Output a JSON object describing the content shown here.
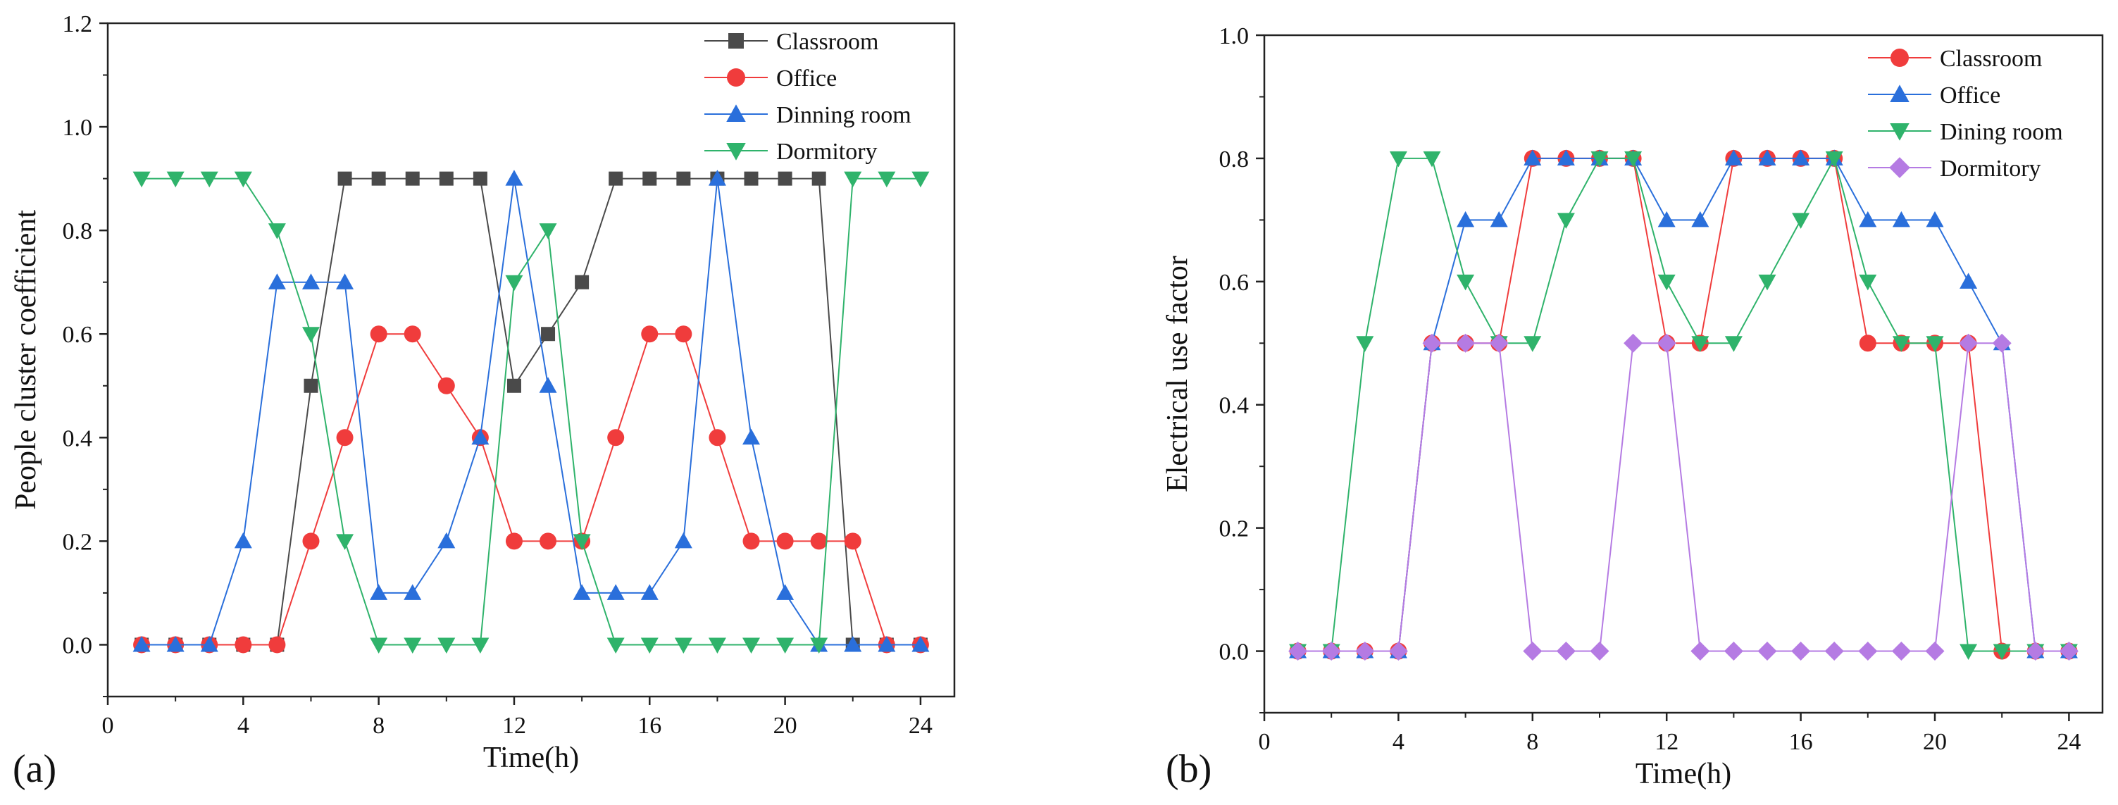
{
  "chart_data": [
    {
      "type": "line",
      "panel_label": "(a)",
      "title": "",
      "xlabel": "Time(h)",
      "ylabel": "People cluster coefficient",
      "xlim": [
        0,
        25
      ],
      "ylim": [
        -0.1,
        1.2
      ],
      "xticks": [
        0,
        4,
        8,
        12,
        16,
        20,
        24
      ],
      "xtick_labels": [
        "0",
        "4",
        "8",
        "12",
        "16",
        "20",
        "24"
      ],
      "yticks": [
        0.0,
        0.2,
        0.4,
        0.6,
        0.8,
        1.0,
        1.2
      ],
      "ytick_labels": [
        "0.0",
        "0.2",
        "0.4",
        "0.6",
        "0.8",
        "1.0",
        "1.2"
      ],
      "grid": false,
      "legend_position": "top-right",
      "x": [
        1,
        2,
        3,
        4,
        5,
        6,
        7,
        8,
        9,
        10,
        11,
        12,
        13,
        14,
        15,
        16,
        17,
        18,
        19,
        20,
        21,
        22,
        23,
        24
      ],
      "series": [
        {
          "name": "Classroom",
          "marker": "square",
          "color": "#4a4a4a",
          "values": [
            0,
            0,
            0,
            0,
            0,
            0.5,
            0.9,
            0.9,
            0.9,
            0.9,
            0.9,
            0.5,
            0.6,
            0.7,
            0.9,
            0.9,
            0.9,
            0.9,
            0.9,
            0.9,
            0.9,
            0,
            0,
            0
          ]
        },
        {
          "name": "Office",
          "marker": "circle",
          "color": "#f03c3c",
          "values": [
            0,
            0,
            0,
            0,
            0,
            0.2,
            0.4,
            0.6,
            0.6,
            0.5,
            0.4,
            0.2,
            0.2,
            0.2,
            0.4,
            0.6,
            0.6,
            0.4,
            0.2,
            0.2,
            0.2,
            0.2,
            0,
            0
          ]
        },
        {
          "name": "Dinning room",
          "marker": "triangle-up",
          "color": "#2a6fdb",
          "values": [
            0,
            0,
            0,
            0.2,
            0.7,
            0.7,
            0.7,
            0.1,
            0.1,
            0.2,
            0.4,
            0.9,
            0.5,
            0.1,
            0.1,
            0.1,
            0.2,
            0.9,
            0.4,
            0.1,
            0,
            0,
            0,
            0
          ]
        },
        {
          "name": "Dormitory",
          "marker": "triangle-down",
          "color": "#2fb36b",
          "values": [
            0.9,
            0.9,
            0.9,
            0.9,
            0.8,
            0.6,
            0.2,
            0,
            0,
            0,
            0,
            0.7,
            0.8,
            0.2,
            0,
            0,
            0,
            0,
            0,
            0,
            0,
            0.9,
            0.9,
            0.9
          ]
        }
      ]
    },
    {
      "type": "line",
      "panel_label": "(b)",
      "title": "",
      "xlabel": "Time(h)",
      "ylabel": "Electrical use factor",
      "xlim": [
        0,
        25
      ],
      "ylim": [
        -0.1,
        1.0
      ],
      "xticks": [
        0,
        4,
        8,
        12,
        16,
        20,
        24
      ],
      "xtick_labels": [
        "0",
        "4",
        "8",
        "12",
        "16",
        "20",
        "24"
      ],
      "yticks": [
        0.0,
        0.2,
        0.4,
        0.6,
        0.8,
        1.0
      ],
      "ytick_labels": [
        "0.0",
        "0.2",
        "0.4",
        "0.6",
        "0.8",
        "1.0"
      ],
      "grid": false,
      "legend_position": "top-right",
      "x": [
        1,
        2,
        3,
        4,
        5,
        6,
        7,
        8,
        9,
        10,
        11,
        12,
        13,
        14,
        15,
        16,
        17,
        18,
        19,
        20,
        21,
        22,
        23,
        24
      ],
      "series": [
        {
          "name": "Classroom",
          "marker": "circle",
          "color": "#f03c3c",
          "values": [
            0,
            0,
            0,
            0,
            0.5,
            0.5,
            0.5,
            0.8,
            0.8,
            0.8,
            0.8,
            0.5,
            0.5,
            0.8,
            0.8,
            0.8,
            0.8,
            0.5,
            0.5,
            0.5,
            0.5,
            0,
            0,
            0
          ]
        },
        {
          "name": "Office",
          "marker": "triangle-up",
          "color": "#2a6fdb",
          "values": [
            0,
            0,
            0,
            0,
            0.5,
            0.7,
            0.7,
            0.8,
            0.8,
            0.8,
            0.8,
            0.7,
            0.7,
            0.8,
            0.8,
            0.8,
            0.8,
            0.7,
            0.7,
            0.7,
            0.6,
            0.5,
            0,
            0
          ]
        },
        {
          "name": "Dining room",
          "marker": "triangle-down",
          "color": "#2fb36b",
          "values": [
            0,
            0,
            0.5,
            0.8,
            0.8,
            0.6,
            0.5,
            0.5,
            0.7,
            0.8,
            0.8,
            0.6,
            0.5,
            0.5,
            0.6,
            0.7,
            0.8,
            0.6,
            0.5,
            0.5,
            0,
            0,
            0,
            0
          ]
        },
        {
          "name": "Dormitory",
          "marker": "diamond",
          "color": "#b57be3",
          "values": [
            0,
            0,
            0,
            0,
            0.5,
            0.5,
            0.5,
            0,
            0,
            0,
            0.5,
            0.5,
            0,
            0,
            0,
            0,
            0,
            0,
            0,
            0,
            0.5,
            0.5,
            0,
            0
          ]
        }
      ]
    }
  ]
}
